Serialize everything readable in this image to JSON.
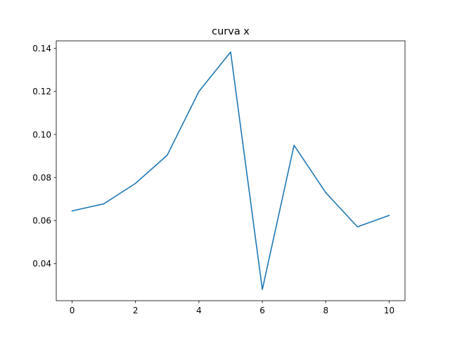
{
  "chart_data": {
    "type": "line",
    "title": "curva x",
    "xlabel": "",
    "ylabel": "",
    "xlim": [
      -0.5,
      10.5
    ],
    "ylim": [
      0.0228,
      0.1435
    ],
    "x_ticks": [
      0,
      2,
      4,
      6,
      8,
      10
    ],
    "x_tick_labels": [
      "0",
      "2",
      "4",
      "6",
      "8",
      "10"
    ],
    "y_ticks": [
      0.04,
      0.06,
      0.08,
      0.1,
      0.12,
      0.14
    ],
    "y_tick_labels": [
      "0.04",
      "0.06",
      "0.08",
      "0.10",
      "0.12",
      "0.14"
    ],
    "grid": false,
    "series": [
      {
        "color": "#1f77b4",
        "x": [
          0,
          1,
          2,
          3,
          4,
          5,
          6,
          7,
          8,
          9,
          10
        ],
        "values": [
          0.0645,
          0.0678,
          0.0773,
          0.0904,
          0.12,
          0.1383,
          0.028,
          0.095,
          0.073,
          0.0571,
          0.0624
        ]
      }
    ]
  }
}
